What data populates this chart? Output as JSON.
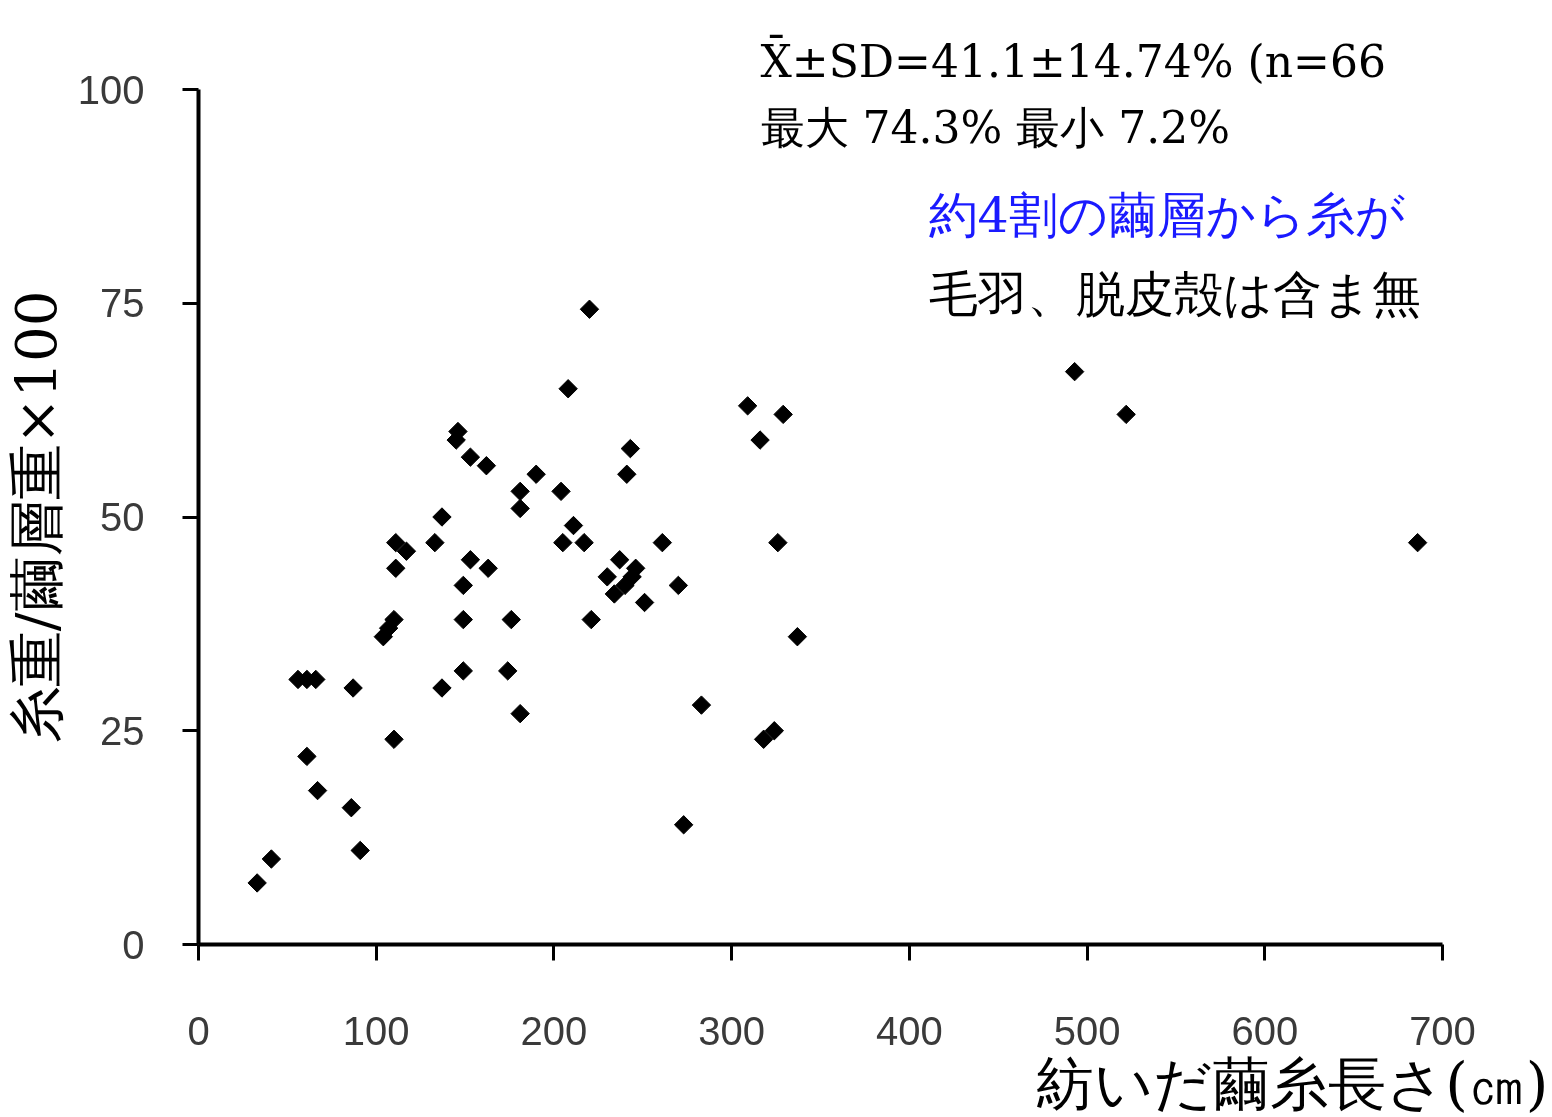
{
  "chart_data": {
    "type": "scatter",
    "xlabel": "紡いだ繭糸長さ(㎝)",
    "ylabel": "糸重/繭層重×100",
    "annotations": [
      "X̄±SD=41.1±14.74% (n=66",
      "最大 74.3% 最小 7.2%",
      "約4割の繭層から糸が",
      "毛羽、脱皮殻は含ま無"
    ],
    "x": [
      33,
      41,
      56,
      61,
      66,
      61,
      67,
      87,
      86,
      91,
      110,
      104,
      107,
      110,
      111,
      117,
      111,
      133,
      137,
      137,
      146,
      145,
      153,
      162,
      153,
      163,
      149,
      149,
      149,
      176,
      174,
      181,
      181,
      181,
      220,
      208,
      190,
      204,
      211,
      205,
      217,
      261,
      221,
      237,
      246,
      244,
      240,
      230,
      234,
      251,
      270,
      243,
      241,
      309,
      329,
      316,
      326,
      337,
      283,
      318,
      324,
      273,
      493,
      522,
      686
    ],
    "values": [
      7.2,
      10,
      31,
      31,
      31,
      22,
      18,
      30,
      16,
      11,
      24,
      36,
      37,
      38,
      47,
      46,
      44,
      47,
      50,
      30,
      60,
      59,
      57,
      56,
      45,
      44,
      42,
      38,
      32,
      38,
      32,
      27,
      53,
      51,
      74.3,
      65,
      55,
      53,
      49,
      47,
      47,
      47,
      38,
      45,
      44,
      43,
      42,
      43,
      41,
      40,
      42,
      58,
      55,
      63,
      62,
      59,
      47,
      36,
      28,
      24,
      25,
      14,
      67,
      62,
      47
    ],
    "color": "#000000",
    "marker": "diamond",
    "grid": false,
    "xlim": [
      0,
      700
    ],
    "ylim": [
      0,
      100
    ],
    "xticks": [
      0,
      100,
      200,
      300,
      400,
      500,
      600,
      700
    ],
    "yticks": [
      0,
      25,
      50,
      75,
      100
    ]
  }
}
